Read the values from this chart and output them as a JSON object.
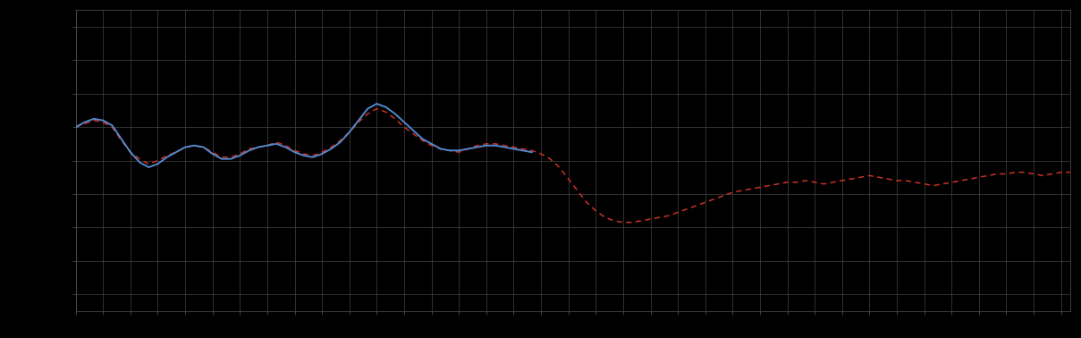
{
  "background_color": "#000000",
  "plot_bg_color": "#000000",
  "grid_color": "#444444",
  "grid_linewidth": 0.5,
  "figure_size": [
    12.09,
    3.78
  ],
  "dpi": 100,
  "line1_color": "#5588cc",
  "line1_linewidth": 1.4,
  "line2_color": "#cc3322",
  "line2_linewidth": 1.1,
  "line2_dashes": [
    4,
    3
  ],
  "xlim": [
    0,
    109
  ],
  "ylim": [
    -9,
    9
  ],
  "tick_color": "#000000",
  "spine_color": "#555555",
  "x_major_step": 3.0,
  "y_major_step": 2.0,
  "blue_x": [
    0,
    1,
    2,
    3,
    4,
    5,
    6,
    7,
    8,
    9,
    10,
    11,
    12,
    13,
    14,
    15,
    16,
    17,
    18,
    19,
    20,
    21,
    22,
    23,
    24,
    25,
    26,
    27,
    28,
    29,
    30,
    31,
    32,
    33,
    34,
    35,
    36,
    37,
    38,
    39,
    40,
    41,
    42,
    43,
    44,
    45,
    46,
    47,
    48,
    49,
    50
  ],
  "blue_y": [
    2.0,
    2.3,
    2.5,
    2.4,
    2.1,
    1.3,
    0.5,
    -0.1,
    -0.4,
    -0.2,
    0.2,
    0.5,
    0.8,
    0.9,
    0.8,
    0.4,
    0.1,
    0.1,
    0.3,
    0.6,
    0.8,
    0.9,
    1.0,
    0.8,
    0.5,
    0.3,
    0.2,
    0.4,
    0.7,
    1.1,
    1.7,
    2.4,
    3.1,
    3.4,
    3.2,
    2.8,
    2.3,
    1.8,
    1.3,
    1.0,
    0.7,
    0.6,
    0.6,
    0.7,
    0.8,
    0.9,
    0.9,
    0.8,
    0.7,
    0.6,
    0.5
  ],
  "red_x": [
    0,
    1,
    2,
    3,
    4,
    5,
    6,
    7,
    8,
    9,
    10,
    11,
    12,
    13,
    14,
    15,
    16,
    17,
    18,
    19,
    20,
    21,
    22,
    23,
    24,
    25,
    26,
    27,
    28,
    29,
    30,
    31,
    32,
    33,
    34,
    35,
    36,
    37,
    38,
    39,
    40,
    41,
    42,
    43,
    44,
    45,
    46,
    47,
    48,
    49,
    50,
    51,
    52,
    53,
    54,
    55,
    56,
    57,
    58,
    59,
    60,
    61,
    62,
    63,
    64,
    65,
    66,
    67,
    68,
    69,
    70,
    71,
    72,
    73,
    74,
    75,
    76,
    77,
    78,
    79,
    80,
    81,
    82,
    83,
    84,
    85,
    86,
    87,
    88,
    89,
    90,
    91,
    92,
    93,
    94,
    95,
    96,
    97,
    98,
    99,
    100,
    101,
    102,
    103,
    104,
    105,
    106,
    107,
    108,
    109
  ],
  "red_y": [
    2.0,
    2.2,
    2.4,
    2.3,
    2.0,
    1.2,
    0.5,
    0.1,
    -0.2,
    0.0,
    0.3,
    0.5,
    0.8,
    0.9,
    0.8,
    0.5,
    0.2,
    0.2,
    0.4,
    0.7,
    0.8,
    0.9,
    1.1,
    0.9,
    0.6,
    0.4,
    0.3,
    0.5,
    0.8,
    1.2,
    1.7,
    2.3,
    2.8,
    3.1,
    2.9,
    2.5,
    2.0,
    1.6,
    1.2,
    0.9,
    0.7,
    0.6,
    0.5,
    0.7,
    0.9,
    1.0,
    1.0,
    0.9,
    0.8,
    0.7,
    0.6,
    0.4,
    0.1,
    -0.4,
    -1.1,
    -1.8,
    -2.5,
    -3.0,
    -3.4,
    -3.6,
    -3.7,
    -3.7,
    -3.6,
    -3.5,
    -3.4,
    -3.3,
    -3.1,
    -2.9,
    -2.7,
    -2.5,
    -2.3,
    -2.1,
    -1.9,
    -1.8,
    -1.7,
    -1.6,
    -1.5,
    -1.4,
    -1.3,
    -1.3,
    -1.2,
    -1.3,
    -1.4,
    -1.3,
    -1.2,
    -1.1,
    -1.0,
    -0.9,
    -1.0,
    -1.1,
    -1.2,
    -1.2,
    -1.3,
    -1.4,
    -1.5,
    -1.4,
    -1.3,
    -1.2,
    -1.1,
    -1.0,
    -0.9,
    -0.8,
    -0.8,
    -0.7,
    -0.7,
    -0.8,
    -0.9,
    -0.8,
    -0.7,
    -0.7
  ]
}
